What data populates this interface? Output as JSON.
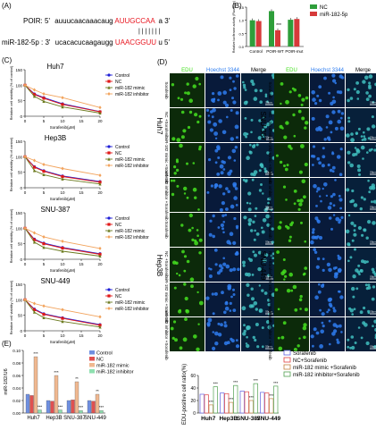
{
  "panel_labels": {
    "A": "(A)",
    "B": "(B)",
    "C": "(C)",
    "D": "(D)",
    "E": "(E)"
  },
  "colors": {
    "control": "#1f1fd6",
    "nc": "#e01818",
    "mimic": "#6b7a1e",
    "inhibitor": "#f2a35c",
    "seq_red": "#e8141e",
    "bar_nc": "#2e9e3a",
    "bar_mir": "#d63a3a",
    "edu_green": "#45e020",
    "hoechst_blue": "#2e7df0",
    "merge": "#3fbfbf"
  },
  "panel_a": {
    "poir_prefix": "POIR: 5'",
    "poir_black": "auuucaacaaacaug",
    "poir_red": "AUUGCCAA",
    "poir_end": "a 3'",
    "pairs": "| | | | | | |",
    "mir_prefix": "miR-182-5p : 3'",
    "mir_black": "ucacacucaagaugg",
    "mir_red": "UAACGGUU",
    "mir_end": "u 5'"
  },
  "chart_data": [
    {
      "type": "bar",
      "panel": "B",
      "categories": [
        "Control",
        "POIR-WT",
        "POIR-mut"
      ],
      "series": [
        {
          "name": "NC",
          "values": [
            1.0,
            1.35,
            1.02
          ]
        },
        {
          "name": "miR-182-5p",
          "values": [
            0.97,
            0.62,
            1.05
          ]
        }
      ],
      "ylabel": "Relative luciferase activity (Fluc/Rluc)",
      "ylim": [
        0,
        1.5
      ],
      "yticks": [
        "0.0",
        "0.5",
        "1.0",
        "1.5"
      ],
      "annotation": "***",
      "legend": "top-right"
    },
    {
      "type": "line",
      "panel": "C",
      "title": "Huh7",
      "x": [
        0,
        2.5,
        5,
        10,
        20
      ],
      "series": [
        {
          "name": "Control",
          "values": [
            100,
            72,
            60,
            40,
            15
          ]
        },
        {
          "name": "NC",
          "values": [
            100,
            70,
            58,
            38,
            14
          ]
        },
        {
          "name": "miR-182 mimic",
          "values": [
            100,
            64,
            48,
            30,
            10
          ]
        },
        {
          "name": "miR-182 inhibitor",
          "values": [
            100,
            85,
            72,
            60,
            28
          ]
        }
      ],
      "xlabel": "Sorafenib(μM)",
      "ylabel": "Relative cell viability (% of control)",
      "ylim": [
        0,
        150
      ],
      "xticks": [
        "0",
        "5",
        "10",
        "15",
        "20"
      ],
      "yticks": [
        "0",
        "50",
        "100",
        "150"
      ]
    },
    {
      "type": "line",
      "panel": "C",
      "title": "Hep3B",
      "x": [
        0,
        2.5,
        5,
        10,
        20
      ],
      "series": [
        {
          "name": "Control",
          "values": [
            100,
            68,
            55,
            38,
            20
          ]
        },
        {
          "name": "NC",
          "values": [
            100,
            66,
            53,
            36,
            18
          ]
        },
        {
          "name": "miR-182 mimic",
          "values": [
            100,
            55,
            42,
            28,
            12
          ]
        },
        {
          "name": "miR-182 inhibitor",
          "values": [
            100,
            88,
            75,
            62,
            40
          ]
        }
      ],
      "xlabel": "Sorafenib(μM)",
      "ylabel": "Relative cell viability (% of control)",
      "ylim": [
        0,
        150
      ],
      "xticks": [
        "0",
        "5",
        "10",
        "15",
        "20"
      ],
      "yticks": [
        "0",
        "50",
        "100",
        "150"
      ]
    },
    {
      "type": "line",
      "panel": "C",
      "title": "SNU-387",
      "x": [
        0,
        2.5,
        5,
        10,
        20
      ],
      "series": [
        {
          "name": "Control",
          "values": [
            100,
            65,
            52,
            38,
            18
          ]
        },
        {
          "name": "NC",
          "values": [
            100,
            63,
            50,
            36,
            16
          ]
        },
        {
          "name": "miR-182 mimic",
          "values": [
            100,
            55,
            38,
            26,
            10
          ]
        },
        {
          "name": "miR-182 inhibitor",
          "values": [
            100,
            85,
            72,
            58,
            35
          ]
        }
      ],
      "xlabel": "Sorafenib(μM)",
      "ylabel": "Relative cell viability (% of control)",
      "ylim": [
        0,
        150
      ],
      "xticks": [
        "0",
        "5",
        "10",
        "15",
        "20"
      ],
      "yticks": [
        "0",
        "50",
        "100",
        "150"
      ]
    },
    {
      "type": "line",
      "panel": "C",
      "title": "SNU-449",
      "x": [
        0,
        2.5,
        5,
        10,
        20
      ],
      "series": [
        {
          "name": "Control",
          "values": [
            100,
            70,
            55,
            42,
            20
          ]
        },
        {
          "name": "NC",
          "values": [
            100,
            68,
            53,
            40,
            18
          ]
        },
        {
          "name": "miR-182 mimic",
          "values": [
            100,
            60,
            42,
            30,
            12
          ]
        },
        {
          "name": "miR-182 inhibitor",
          "values": [
            100,
            88,
            80,
            68,
            45
          ]
        }
      ],
      "xlabel": "Sorafenib(μM)",
      "ylabel": "Relative cell viability (% of control)",
      "ylim": [
        0,
        150
      ],
      "xticks": [
        "0",
        "5",
        "10",
        "15",
        "20"
      ],
      "yticks": [
        "0",
        "50",
        "100",
        "150"
      ]
    },
    {
      "type": "bar",
      "panel": "E-left",
      "categories": [
        "Huh7",
        "Hep3B",
        "SNU-387",
        "SNU-449"
      ],
      "series": [
        {
          "name": "Control",
          "values": [
            0.03,
            0.02,
            0.02,
            0.02
          ]
        },
        {
          "name": "NC",
          "values": [
            0.028,
            0.019,
            0.021,
            0.019
          ]
        },
        {
          "name": "miR-182 mimic",
          "values": [
            0.09,
            0.06,
            0.05,
            0.03
          ]
        },
        {
          "name": "miR-182 inhibitor",
          "values": [
            0.005,
            0.005,
            0.004,
            0.004
          ]
        }
      ],
      "ylabel": "miR-182/U6",
      "ylim": [
        0,
        0.1
      ],
      "yticks": [
        "0.00",
        "0.02",
        "0.04",
        "0.06",
        "0.08",
        "0.10"
      ],
      "annotations": [
        "***",
        "***",
        "***",
        "***",
        "**",
        "***",
        "**",
        "***"
      ],
      "legend": "top-right"
    },
    {
      "type": "bar",
      "panel": "E-right",
      "categories": [
        "Huh7",
        "Hep3B",
        "SNU-387",
        "SNU-449"
      ],
      "series": [
        {
          "name": "Sorafenib",
          "values": [
            30,
            32,
            35,
            33
          ]
        },
        {
          "name": "NC+Sorafenib",
          "values": [
            29,
            31,
            34,
            32
          ]
        },
        {
          "name": "miR-182 mimic +Sorafenib",
          "values": [
            13,
            17,
            20,
            23
          ]
        },
        {
          "name": "miR-182 inhibitor+Sorafenib",
          "values": [
            42,
            44,
            47,
            43
          ]
        }
      ],
      "ylabel": "EDU-positive cell ratio(%)",
      "ylim": [
        0,
        60
      ],
      "yticks": [
        "0",
        "20",
        "40",
        "60"
      ],
      "annotations": [
        "***",
        "***",
        "***",
        "***",
        "***",
        "***",
        "***",
        "***"
      ],
      "legend": "top-right"
    }
  ],
  "panel_d": {
    "col_headers": [
      "EDU",
      "Hoechst 3344",
      "Merge"
    ],
    "left_rows": [
      "Sorafenib",
      "NC +Sorafenib",
      "miR-182 mimic +Sorafenib",
      "miR-182 inhibitor +Sorafenib"
    ],
    "right_rows": [
      "Sorafenib",
      "NC +Sorafenib",
      "miR-182 mimic +Sorafenib",
      "miR-182 inhibitor +Sorafenib"
    ],
    "cell_lines_left": [
      "Huh7",
      "Hep3B"
    ],
    "cell_lines_right": [
      "SNU-387",
      "SNU-449"
    ],
    "scalebar": "50μm"
  }
}
